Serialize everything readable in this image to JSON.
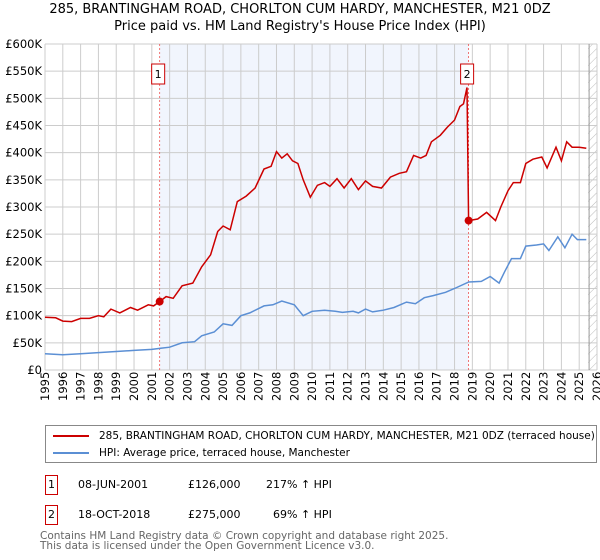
{
  "chart_data": {
    "type": "line",
    "title": "285, BRANTINGHAM ROAD, CHORLTON CUM HARDY, MANCHESTER, M21 0DZ",
    "subtitle": "Price paid vs. HM Land Registry's House Price Index (HPI)",
    "xlim": [
      1995,
      2026
    ],
    "ylim": [
      0,
      600000
    ],
    "x_ticks": [
      "1995",
      "1996",
      "1997",
      "1998",
      "1999",
      "2000",
      "2001",
      "2002",
      "2003",
      "2004",
      "2005",
      "2006",
      "2007",
      "2008",
      "2009",
      "2010",
      "2011",
      "2012",
      "2013",
      "2014",
      "2015",
      "2016",
      "2017",
      "2018",
      "2019",
      "2020",
      "2021",
      "2022",
      "2023",
      "2024",
      "2025",
      "2026"
    ],
    "y_ticks": [
      "£0",
      "£50K",
      "£100K",
      "£150K",
      "£200K",
      "£250K",
      "£300K",
      "£350K",
      "£400K",
      "£450K",
      "£500K",
      "£550K",
      "£600K"
    ],
    "grid": true,
    "shaded_range": [
      2001.44,
      2018.79
    ],
    "hatched_from": 2025.5,
    "series": [
      {
        "name": "285, BRANTINGHAM ROAD, CHORLTON CUM HARDY, MANCHESTER, M21 0DZ (terraced house)",
        "color": "#cc0000",
        "points": [
          [
            1995,
            97
          ],
          [
            1995.6,
            96
          ],
          [
            1996,
            90
          ],
          [
            1996.5,
            89
          ],
          [
            1997,
            95
          ],
          [
            1997.5,
            95
          ],
          [
            1998,
            100
          ],
          [
            1998.3,
            98
          ],
          [
            1998.7,
            112
          ],
          [
            1999.2,
            105
          ],
          [
            1999.8,
            115
          ],
          [
            2000.2,
            110
          ],
          [
            2000.8,
            120
          ],
          [
            2001.1,
            118
          ],
          [
            2001.44,
            126
          ],
          [
            2001.8,
            135
          ],
          [
            2002.2,
            132
          ],
          [
            2002.7,
            155
          ],
          [
            2003.3,
            160
          ],
          [
            2003.8,
            190
          ],
          [
            2004.3,
            212
          ],
          [
            2004.7,
            255
          ],
          [
            2005,
            265
          ],
          [
            2005.4,
            258
          ],
          [
            2005.8,
            310
          ],
          [
            2006.3,
            320
          ],
          [
            2006.8,
            335
          ],
          [
            2007.3,
            370
          ],
          [
            2007.7,
            375
          ],
          [
            2008,
            402
          ],
          [
            2008.3,
            390
          ],
          [
            2008.6,
            398
          ],
          [
            2008.9,
            385
          ],
          [
            2009.2,
            380
          ],
          [
            2009.5,
            350
          ],
          [
            2009.9,
            318
          ],
          [
            2010.3,
            340
          ],
          [
            2010.7,
            345
          ],
          [
            2011,
            338
          ],
          [
            2011.4,
            352
          ],
          [
            2011.8,
            335
          ],
          [
            2012.2,
            352
          ],
          [
            2012.6,
            332
          ],
          [
            2013,
            348
          ],
          [
            2013.4,
            338
          ],
          [
            2013.9,
            335
          ],
          [
            2014.4,
            355
          ],
          [
            2014.9,
            362
          ],
          [
            2015.3,
            365
          ],
          [
            2015.7,
            395
          ],
          [
            2016.1,
            390
          ],
          [
            2016.4,
            395
          ],
          [
            2016.7,
            420
          ],
          [
            2017.2,
            432
          ],
          [
            2017.6,
            447
          ],
          [
            2018,
            460
          ],
          [
            2018.3,
            485
          ],
          [
            2018.5,
            490
          ],
          [
            2018.7,
            520
          ],
          [
            2018.79,
            275
          ],
          [
            2019.3,
            278
          ],
          [
            2019.8,
            290
          ],
          [
            2020.3,
            275
          ],
          [
            2020.6,
            300
          ],
          [
            2021,
            330
          ],
          [
            2021.3,
            345
          ],
          [
            2021.7,
            345
          ],
          [
            2022,
            380
          ],
          [
            2022.4,
            388
          ],
          [
            2022.9,
            392
          ],
          [
            2023.2,
            372
          ],
          [
            2023.7,
            410
          ],
          [
            2024,
            385
          ],
          [
            2024.3,
            420
          ],
          [
            2024.6,
            410
          ],
          [
            2025,
            410
          ],
          [
            2025.4,
            408
          ]
        ]
      },
      {
        "name": "HPI: Average price, terraced house, Manchester",
        "color": "#5b8fd4",
        "points": [
          [
            1995,
            30
          ],
          [
            1996,
            28
          ],
          [
            1997,
            30
          ],
          [
            1998,
            32
          ],
          [
            1999,
            34
          ],
          [
            2000,
            36
          ],
          [
            2001,
            38
          ],
          [
            2001.5,
            40
          ],
          [
            2002,
            42
          ],
          [
            2002.7,
            50
          ],
          [
            2003.4,
            52
          ],
          [
            2003.8,
            63
          ],
          [
            2004.5,
            70
          ],
          [
            2005,
            85
          ],
          [
            2005.5,
            82
          ],
          [
            2006,
            100
          ],
          [
            2006.5,
            105
          ],
          [
            2007.3,
            118
          ],
          [
            2007.8,
            120
          ],
          [
            2008.3,
            127
          ],
          [
            2009,
            120
          ],
          [
            2009.5,
            100
          ],
          [
            2010,
            108
          ],
          [
            2010.7,
            110
          ],
          [
            2011.3,
            108
          ],
          [
            2011.7,
            106
          ],
          [
            2012.3,
            108
          ],
          [
            2012.6,
            105
          ],
          [
            2013,
            112
          ],
          [
            2013.4,
            107
          ],
          [
            2014,
            110
          ],
          [
            2014.6,
            115
          ],
          [
            2015.3,
            125
          ],
          [
            2015.8,
            122
          ],
          [
            2016.3,
            133
          ],
          [
            2016.8,
            137
          ],
          [
            2017.5,
            143
          ],
          [
            2018,
            150
          ],
          [
            2018.8,
            162
          ],
          [
            2019.5,
            163
          ],
          [
            2020,
            172
          ],
          [
            2020.5,
            160
          ],
          [
            2020.8,
            180
          ],
          [
            2021.2,
            205
          ],
          [
            2021.7,
            205
          ],
          [
            2022,
            228
          ],
          [
            2022.6,
            230
          ],
          [
            2023,
            232
          ],
          [
            2023.3,
            220
          ],
          [
            2023.8,
            245
          ],
          [
            2024.2,
            225
          ],
          [
            2024.6,
            250
          ],
          [
            2024.9,
            240
          ],
          [
            2025.4,
            240
          ]
        ]
      }
    ],
    "sales": [
      {
        "label": "1",
        "x": 2001.44,
        "y": 126
      },
      {
        "label": "2",
        "x": 2018.79,
        "y": 275
      }
    ]
  },
  "transactions": [
    {
      "num": "1",
      "date": "08-JUN-2001",
      "price": "£126,000",
      "hpi": "217% ↑ HPI"
    },
    {
      "num": "2",
      "date": "18-OCT-2018",
      "price": "£275,000",
      "hpi": "69% ↑ HPI"
    }
  ],
  "footer": {
    "line1": "Contains HM Land Registry data © Crown copyright and database right 2025.",
    "line2": "This data is licensed under the Open Government Licence v3.0."
  }
}
